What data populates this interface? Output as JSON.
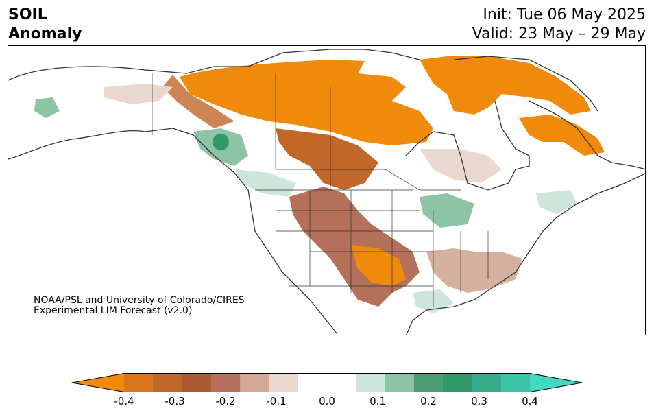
{
  "title": {
    "left_line1": "SOIL",
    "left_line2": "Anomaly",
    "init": "Init: Tue 06 May 2025",
    "valid": "Valid: 23 May – 29 May"
  },
  "credit": {
    "line1": "NOAA/PSL and University of Colorado/CIRES",
    "line2": "Experimental LIM Forecast (v2.0)"
  },
  "colorbar": {
    "colors": [
      "#f08a0a",
      "#d9751a",
      "#c2672a",
      "#aa5a30",
      "#b47058",
      "#d2a896",
      "#ead8cf",
      "#ffffff",
      "#ffffff",
      "#cde5da",
      "#8ec4a6",
      "#4c9e72",
      "#2f9968",
      "#35ab88",
      "#3cc2a6",
      "#40d9c4"
    ],
    "tick_labels": [
      "-0.4",
      "-0.3",
      "-0.2",
      "-0.1",
      "0.0",
      "0.1",
      "0.2",
      "0.3",
      "0.4"
    ],
    "min": -0.4,
    "max": 0.4
  }
}
